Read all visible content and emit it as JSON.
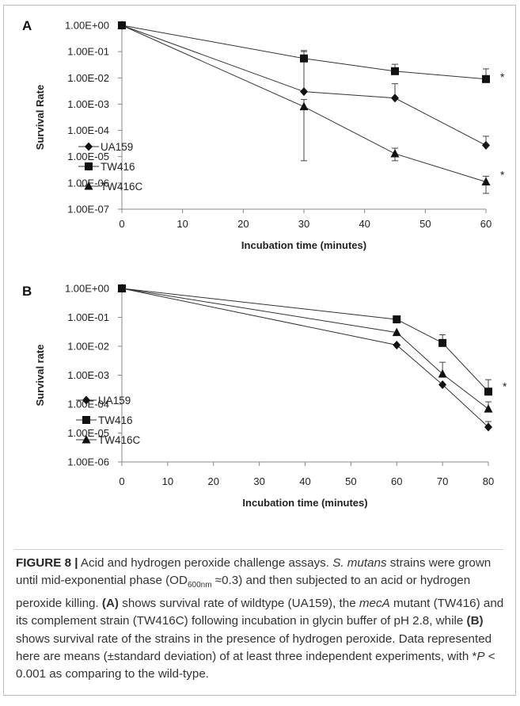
{
  "chart_data": [
    {
      "type": "line",
      "panel_label": "A",
      "x": [
        0,
        30,
        45,
        60
      ],
      "xlabel": "Incubation time (minutes)",
      "ylabel": "Survival Rate",
      "xticks": [
        "0",
        "10",
        "20",
        "30",
        "40",
        "50",
        "60"
      ],
      "xlim": [
        0,
        60
      ],
      "ylim": [
        1e-07,
        1
      ],
      "y_scale": "log",
      "yticks": [
        "1.00E+00",
        "1.00E-01",
        "1.00E-02",
        "1.00E-03",
        "1.00E-04",
        "1.00E-05",
        "1.00E-06",
        "1.00E-07"
      ],
      "grid": false,
      "legend_position": "lower-left",
      "series": [
        {
          "name": "UA159",
          "marker": "diamond",
          "values": [
            1.0,
            0.003,
            0.0017,
            2.7e-05
          ],
          "error_upper": [
            1.0,
            0.1,
            0.006,
            6e-05
          ]
        },
        {
          "name": "TW416",
          "marker": "square",
          "values": [
            1.0,
            0.055,
            0.018,
            0.009
          ],
          "error_upper": [
            1.0,
            0.11,
            0.033,
            0.022
          ]
        },
        {
          "name": "TW416C",
          "marker": "triangle",
          "values": [
            1.0,
            0.0008,
            1.3e-05,
            1.1e-06
          ],
          "error_lower": [
            1.0,
            7e-06,
            7e-06,
            4e-07
          ],
          "error_upper": [
            1.0,
            0.0015,
            2.1e-05,
            1.8e-06
          ]
        }
      ],
      "annotations": [
        "*",
        "*"
      ]
    },
    {
      "type": "line",
      "panel_label": "B",
      "x": [
        0,
        60,
        70,
        80
      ],
      "xlabel": "Incubation time (minutes)",
      "ylabel": "Survival rate",
      "xticks": [
        "0",
        "10",
        "20",
        "30",
        "40",
        "50",
        "60",
        "70",
        "80"
      ],
      "xlim": [
        0,
        80
      ],
      "ylim": [
        1e-06,
        1
      ],
      "y_scale": "log",
      "yticks": [
        "1.00E+00",
        "1.00E-01",
        "1.00E-02",
        "1.00E-03",
        "1.00E-04",
        "1.00E-05",
        "1.00E-06"
      ],
      "grid": false,
      "legend_position": "lower-left",
      "series": [
        {
          "name": "UA159",
          "marker": "diamond",
          "values": [
            1.0,
            0.011,
            0.00047,
            1.6e-05
          ],
          "error_upper": [
            1.0,
            0.011,
            0.00047,
            2.5e-05
          ]
        },
        {
          "name": "TW416",
          "marker": "square",
          "values": [
            1.0,
            0.085,
            0.013,
            0.00027
          ],
          "error_upper": [
            1.0,
            0.085,
            0.025,
            0.0007
          ]
        },
        {
          "name": "TW416C",
          "marker": "triangle",
          "values": [
            1.0,
            0.03,
            0.0011,
            6.8e-05
          ],
          "error_upper": [
            1.0,
            0.03,
            0.0028,
            0.00012
          ]
        }
      ],
      "annotations": [
        "*"
      ]
    }
  ],
  "caption": {
    "figure_label": "FIGURE 8 |",
    "text_1": " Acid and hydrogen peroxide challenge assays. ",
    "species": "S. mutans",
    "text_2": " strains were grown until mid-exponential phase (OD",
    "od_sub": "600nm",
    "text_3": " ≈0.3) and then subjected to an acid or hydrogen peroxide killing. ",
    "panel_a_ref": "(A)",
    "text_4": " shows survival rate of wildtype (UA159), the ",
    "gene": "mecA",
    "text_5": " mutant (TW416) and its complement strain (TW416C) following incubation in glycin buffer of pH 2.8, while ",
    "panel_b_ref": "(B)",
    "text_6": " shows survival rate of the strains in the presence of hydrogen peroxide. Data represented here are means (±standard deviation) of at least three independent experiments, with *",
    "p_symbol": "P",
    "text_7": " < 0.001 as comparing to the wild-type."
  }
}
